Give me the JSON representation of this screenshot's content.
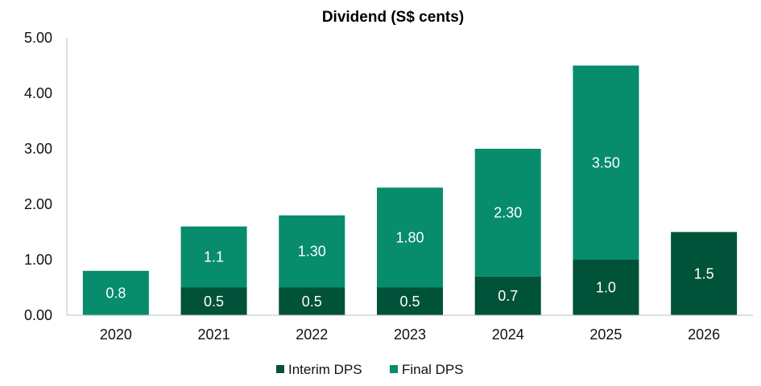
{
  "chart_data": {
    "type": "bar",
    "stacked": true,
    "title": "Dividend (S$ cents)",
    "categories": [
      "2020",
      "2021",
      "2022",
      "2023",
      "2024",
      "2025",
      "2026"
    ],
    "series": [
      {
        "name": "Interim DPS",
        "color": "#005239",
        "values": [
          0,
          0.5,
          0.5,
          0.5,
          0.7,
          1.0,
          1.5
        ],
        "labels": [
          "",
          "0.5",
          "0.5",
          "0.5",
          "0.7",
          "1.0",
          "1.5"
        ]
      },
      {
        "name": "Final DPS",
        "color": "#078c6c",
        "values": [
          0.8,
          1.1,
          1.3,
          1.8,
          2.3,
          3.5,
          0
        ],
        "labels": [
          "0.8",
          "1.1",
          "1.30",
          "1.80",
          "2.30",
          "3.50",
          ""
        ]
      }
    ],
    "ylim": [
      0,
      5
    ],
    "yticks": [
      "0.00",
      "1.00",
      "2.00",
      "3.00",
      "4.00",
      "5.00"
    ],
    "grid": false,
    "legend_position": "bottom"
  }
}
